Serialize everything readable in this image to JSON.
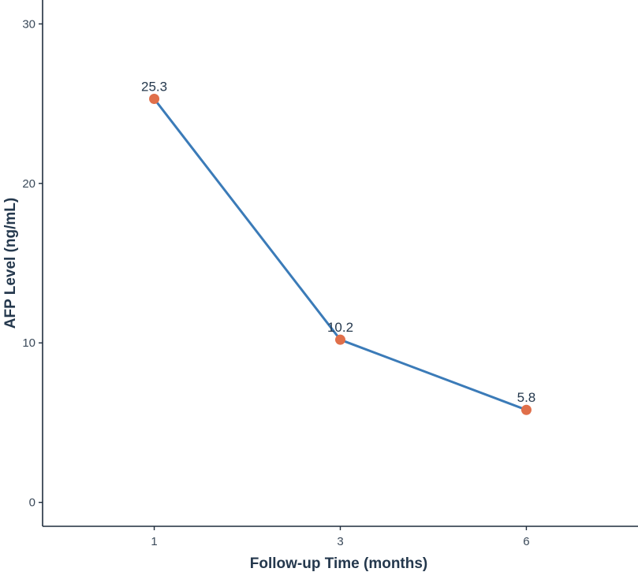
{
  "chart_data": {
    "type": "line",
    "title": "",
    "xlabel": "Follow-up Time (months)",
    "ylabel": "AFP Level (ng/mL)",
    "x_ticks": [
      "1",
      "3",
      "6"
    ],
    "y_ticks": [
      "0",
      "10",
      "20",
      "30"
    ],
    "ylim": [
      -1.5,
      31.5
    ],
    "x_scale": "categorical",
    "grid": false,
    "legend": "none",
    "series": [
      {
        "x": [
          "1",
          "3",
          "6"
        ],
        "values": [
          25.3,
          10.2,
          5.8
        ],
        "labels": [
          "25.3",
          "10.2",
          "5.8"
        ],
        "line_color": "#3b7bb8",
        "marker_color": "#e06f4a"
      }
    ],
    "axis_color": "#1f2d3d"
  }
}
